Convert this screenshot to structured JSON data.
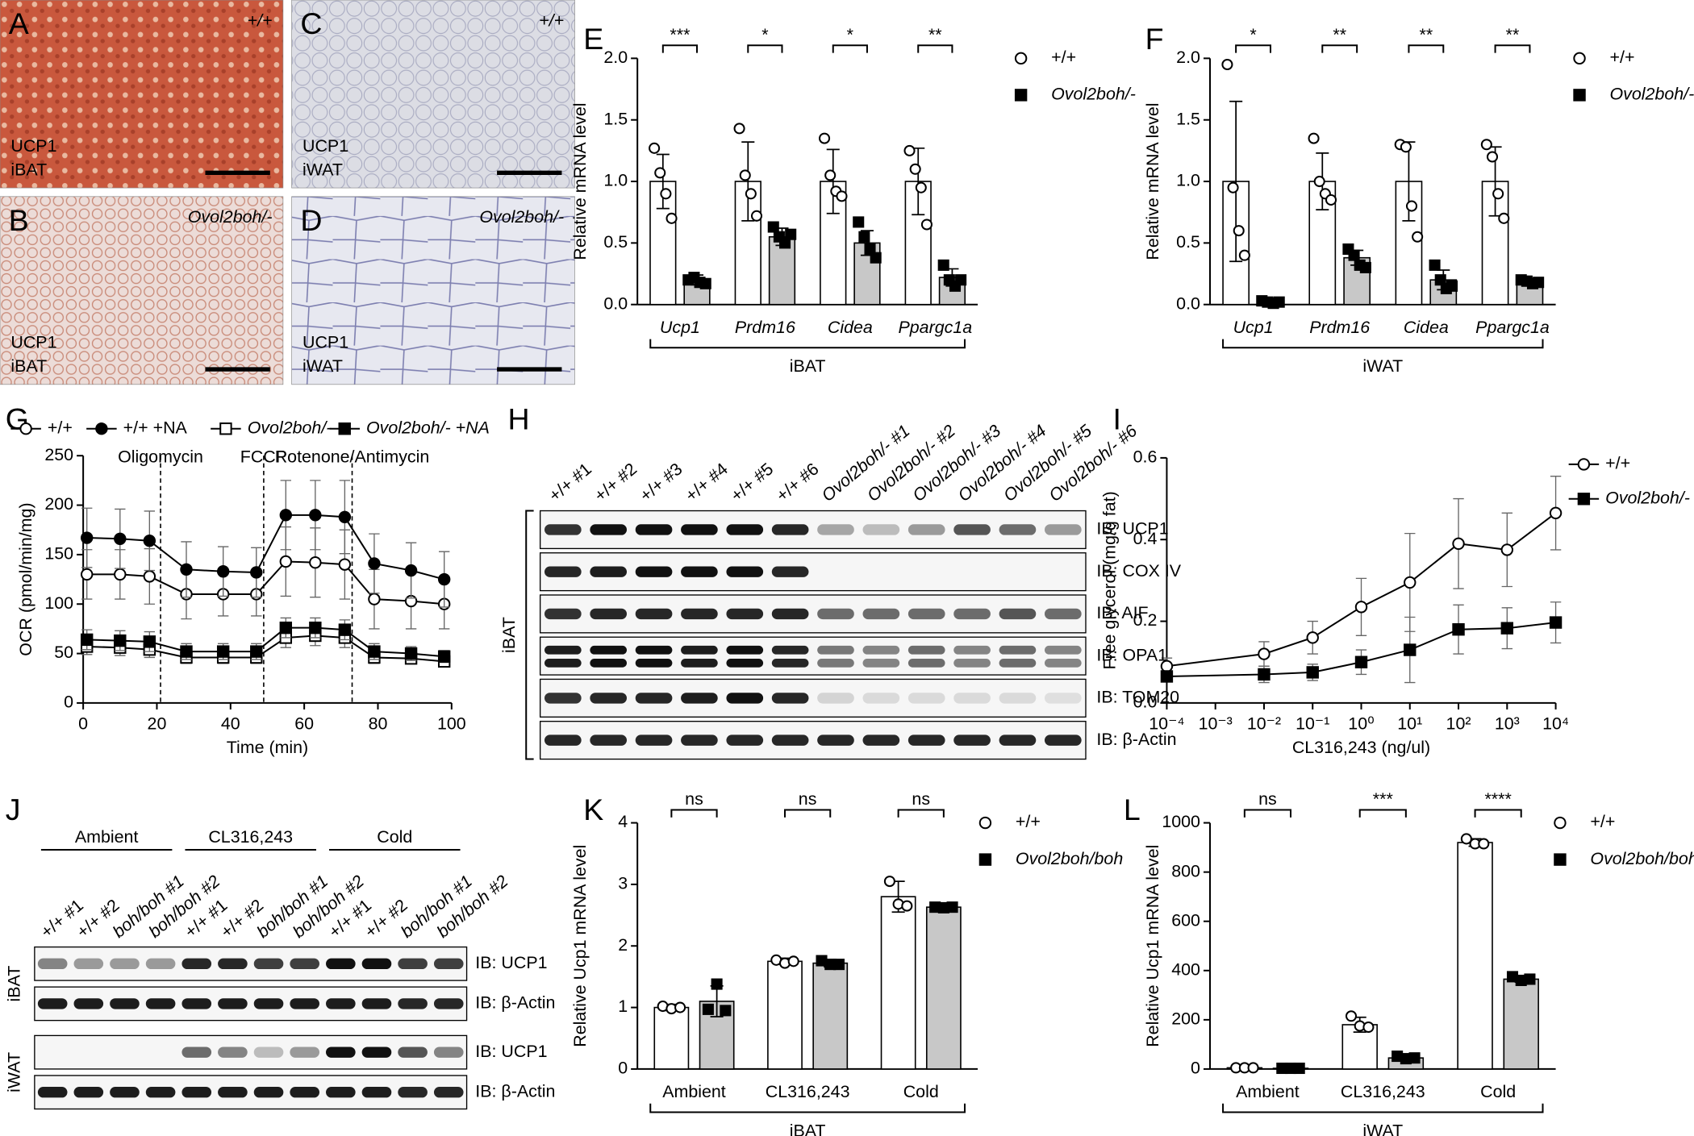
{
  "image_panels": [
    {
      "letter": "A",
      "genotype": "+/+",
      "stain": "UCP1",
      "tissue": "iBAT"
    },
    {
      "letter": "B",
      "genotype": "Ovol2boh/-",
      "stain": "UCP1",
      "tissue": "iBAT"
    },
    {
      "letter": "C",
      "genotype": "+/+",
      "stain": "UCP1",
      "tissue": "iWAT"
    },
    {
      "letter": "D",
      "genotype": "Ovol2boh/-",
      "stain": "UCP1",
      "tissue": "iWAT"
    }
  ],
  "chart_data": [
    {
      "letter": "E",
      "type": "bar",
      "ylabel": "Relative mRNA level",
      "categories": [
        "Ucp1",
        "Prdm16",
        "Cidea",
        "Ppargc1a"
      ],
      "category_style": "italic",
      "group_label": "iBAT",
      "significance": [
        "***",
        "*",
        "*",
        "**"
      ],
      "ylim": [
        0,
        2
      ],
      "yticks": [
        {
          "value": 0,
          "label": "0.0"
        },
        0.5,
        {
          "value": 1,
          "label": "1.0"
        },
        1.5,
        {
          "value": 2,
          "label": "2.0"
        }
      ],
      "series": [
        {
          "name": "+/+",
          "color": "#ffffff",
          "marker": "circle-open",
          "values": [
            1,
            1,
            1,
            1
          ],
          "errors": [
            0.22,
            0.32,
            0.26,
            0.27
          ],
          "points": [
            [
              1.27,
              1.07,
              0.9,
              0.7
            ],
            [
              1.43,
              1.05,
              0.9,
              0.72
            ],
            [
              1.35,
              1.05,
              0.92,
              0.88
            ],
            [
              1.25,
              1.1,
              0.95,
              0.65
            ]
          ]
        },
        {
          "name": "Ovol2boh/-",
          "color": "#c8c8c8",
          "marker": "square",
          "values": [
            0.2,
            0.55,
            0.5,
            0.22
          ],
          "errors": [
            0.04,
            0.07,
            0.1,
            0.07
          ],
          "points": [
            [
              0.2,
              0.22,
              0.18,
              0.17
            ],
            [
              0.63,
              0.55,
              0.5,
              0.57
            ],
            [
              0.67,
              0.55,
              0.45,
              0.38
            ],
            [
              0.32,
              0.2,
              0.15,
              0.2
            ]
          ]
        }
      ]
    },
    {
      "letter": "F",
      "type": "bar",
      "ylabel": "Relative mRNA level",
      "categories": [
        "Ucp1",
        "Prdm16",
        "Cidea",
        "Ppargc1a"
      ],
      "category_style": "italic",
      "group_label": "iWAT",
      "significance": [
        "*",
        "**",
        "**",
        "**"
      ],
      "ylim": [
        0,
        2
      ],
      "yticks": [
        {
          "value": 0,
          "label": "0.0"
        },
        0.5,
        {
          "value": 1,
          "label": "1.0"
        },
        1.5,
        {
          "value": 2,
          "label": "2.0"
        }
      ],
      "series": [
        {
          "name": "+/+",
          "color": "#ffffff",
          "marker": "circle-open",
          "values": [
            1,
            1,
            1,
            1
          ],
          "errors": [
            0.65,
            0.23,
            0.32,
            0.28
          ],
          "points": [
            [
              1.95,
              0.95,
              0.6,
              0.4
            ],
            [
              1.35,
              1.0,
              0.9,
              0.85
            ],
            [
              1.3,
              1.28,
              0.8,
              0.55
            ],
            [
              1.3,
              1.2,
              0.9,
              0.7
            ]
          ]
        },
        {
          "name": "Ovol2boh/-",
          "color": "#c8c8c8",
          "marker": "square",
          "values": [
            0.02,
            0.38,
            0.2,
            0.18
          ],
          "errors": [
            0.01,
            0.06,
            0.08,
            0.02
          ],
          "points": [
            [
              0.03,
              0.02,
              0.01,
              0.02
            ],
            [
              0.45,
              0.4,
              0.32,
              0.3
            ],
            [
              0.32,
              0.2,
              0.13,
              0.15
            ],
            [
              0.2,
              0.19,
              0.17,
              0.18
            ]
          ]
        }
      ]
    },
    {
      "letter": "G",
      "type": "line",
      "xlabel": "Time (min)",
      "ylabel": "OCR (pmol/min/mg)",
      "legend": "top",
      "x": [
        1,
        10,
        18,
        28,
        38,
        47,
        55,
        63,
        71,
        79,
        89,
        98
      ],
      "xlim": [
        0,
        100
      ],
      "xticks": [
        0,
        20,
        40,
        60,
        80,
        100
      ],
      "ylim": [
        0,
        250
      ],
      "yticks": [
        0,
        50,
        100,
        150,
        200,
        250
      ],
      "annotations": [
        {
          "x": 21,
          "label": "Oligomycin"
        },
        {
          "x": 49,
          "label": "FCCP"
        },
        {
          "x": 73,
          "label": "Rotenone/Antimycin"
        }
      ],
      "series": [
        {
          "name": "+/+",
          "color": "#000000",
          "marker": "circle-open",
          "values": [
            130,
            130,
            128,
            110,
            110,
            110,
            143,
            142,
            140,
            105,
            103,
            100
          ],
          "errors": [
            25,
            25,
            28,
            25,
            22,
            22,
            35,
            35,
            35,
            30,
            28,
            25
          ]
        },
        {
          "name": "+/+ +NA",
          "color": "#000000",
          "marker": "circle",
          "values": [
            167,
            166,
            164,
            135,
            133,
            132,
            190,
            190,
            188,
            141,
            134,
            125
          ],
          "errors": [
            30,
            30,
            30,
            28,
            25,
            25,
            35,
            35,
            37,
            30,
            28,
            28
          ]
        },
        {
          "name": "Ovol2boh/-",
          "color": "#000000",
          "marker": "square-open",
          "values": [
            57,
            56,
            54,
            46,
            46,
            46,
            66,
            68,
            66,
            46,
            45,
            42
          ],
          "errors": [
            8,
            8,
            8,
            6,
            6,
            6,
            10,
            10,
            10,
            6,
            5,
            5
          ]
        },
        {
          "name": "Ovol2boh/- +NA",
          "color": "#000000",
          "marker": "square",
          "values": [
            64,
            63,
            62,
            52,
            52,
            52,
            76,
            76,
            74,
            52,
            50,
            47
          ],
          "errors": [
            10,
            10,
            10,
            8,
            8,
            8,
            10,
            10,
            10,
            8,
            7,
            6
          ]
        }
      ]
    },
    {
      "letter": "I",
      "type": "line",
      "xscale": "log",
      "xlabel": "CL316,243 (ng/ul)",
      "ylabel": "Free glycerol (mg/g fat)",
      "legend": "right",
      "x": [
        0.0001,
        0.01,
        0.1,
        1,
        10,
        100,
        1000,
        10000
      ],
      "xlim": [
        0.0001,
        10000
      ],
      "xticks": [
        {
          "value": 0.0001,
          "label": "10⁻⁴"
        },
        {
          "value": 0.001,
          "label": "10⁻³"
        },
        {
          "value": 0.01,
          "label": "10⁻²"
        },
        {
          "value": 0.1,
          "label": "10⁻¹"
        },
        {
          "value": 1,
          "label": "10⁰"
        },
        {
          "value": 10,
          "label": "10¹"
        },
        {
          "value": 100,
          "label": "10²"
        },
        {
          "value": 1000,
          "label": "10³"
        },
        {
          "value": 10000,
          "label": "10⁴"
        }
      ],
      "ylim": [
        0,
        0.6
      ],
      "yticks": [
        {
          "value": 0,
          "label": "0.0"
        },
        0.2,
        0.4,
        0.6
      ],
      "series": [
        {
          "name": "+/+",
          "color": "#000000",
          "marker": "circle-open",
          "values": [
            0.09,
            0.12,
            0.16,
            0.235,
            0.295,
            0.39,
            0.375,
            0.465
          ],
          "errors": [
            0.02,
            0.03,
            0.04,
            0.07,
            0.12,
            0.11,
            0.09,
            0.09
          ]
        },
        {
          "name": "Ovol2boh/-",
          "color": "#000000",
          "marker": "square",
          "values": [
            0.065,
            0.07,
            0.075,
            0.1,
            0.13,
            0.18,
            0.183,
            0.197
          ],
          "errors": [
            0.01,
            0.02,
            0.02,
            0.03,
            0.08,
            0.06,
            0.05,
            0.05
          ]
        }
      ]
    },
    {
      "letter": "K",
      "type": "bar",
      "ylabel": "Relative Ucp1 mRNA level",
      "categories": [
        "Ambient",
        "CL316,243",
        "Cold"
      ],
      "category_style": "normal",
      "group_label": "iBAT",
      "significance": [
        "ns",
        "ns",
        "ns"
      ],
      "ylim": [
        0,
        4
      ],
      "yticks": [
        0,
        1,
        2,
        3,
        4
      ],
      "series": [
        {
          "name": "+/+",
          "color": "#ffffff",
          "marker": "circle-open",
          "values": [
            1.0,
            1.75,
            2.8
          ],
          "errors": [
            0.05,
            0.05,
            0.25
          ],
          "points": [
            [
              1.02,
              0.98,
              1.0
            ],
            [
              1.77,
              1.72,
              1.75
            ],
            [
              3.05,
              2.68,
              2.65
            ]
          ]
        },
        {
          "name": "Ovol2boh/boh",
          "color": "#c8c8c8",
          "marker": "square",
          "values": [
            1.1,
            1.72,
            2.63
          ],
          "errors": [
            0.25,
            0.06,
            0.03
          ],
          "points": [
            [
              0.97,
              1.38,
              0.95
            ],
            [
              1.76,
              1.7,
              1.7
            ],
            [
              2.63,
              2.62,
              2.63
            ]
          ]
        }
      ]
    },
    {
      "letter": "L",
      "type": "bar",
      "ylabel": "Relative Ucp1 mRNA level",
      "categories": [
        "Ambient",
        "CL316,243",
        "Cold"
      ],
      "category_style": "normal",
      "group_label": "iWAT",
      "significance": [
        "ns",
        "***",
        "****"
      ],
      "ylim": [
        0,
        1000
      ],
      "yticks": [
        0,
        200,
        400,
        600,
        800,
        1000
      ],
      "series": [
        {
          "name": "+/+",
          "color": "#ffffff",
          "marker": "circle-open",
          "values": [
            5,
            180,
            920
          ],
          "errors": [
            2,
            30,
            15
          ],
          "points": [
            [
              5,
              5,
              5
            ],
            [
              215,
              175,
              170
            ],
            [
              935,
              915,
              915
            ]
          ]
        },
        {
          "name": "Ovol2boh/boh",
          "color": "#c8c8c8",
          "marker": "square",
          "values": [
            3,
            45,
            365
          ],
          "errors": [
            1,
            10,
            12
          ],
          "points": [
            [
              3,
              3,
              3
            ],
            [
              52,
              42,
              45
            ],
            [
              375,
              360,
              365
            ]
          ]
        }
      ]
    }
  ],
  "blot_h": {
    "letter": "H",
    "side_label": "iBAT",
    "lanes": [
      "+/+ #1",
      "+/+ #2",
      "+/+ #3",
      "+/+ #4",
      "+/+ #5",
      "+/+ #6",
      "Ovol2boh/- #1",
      "Ovol2boh/- #2",
      "Ovol2boh/- #3",
      "Ovol2boh/- #4",
      "Ovol2boh/- #5",
      "Ovol2boh/- #6"
    ],
    "rows": [
      "IB: UCP1",
      "IB: COX IV",
      "IB: AIF",
      "IB: OPA1",
      "IB: TOM20",
      "IB: β-Actin"
    ]
  },
  "blot_j": {
    "letter": "J",
    "groups": [
      "Ambient",
      "CL316,243",
      "Cold"
    ],
    "lanes": [
      "+/+ #1",
      "+/+ #2",
      "boh/boh #1",
      "boh/boh #2",
      "+/+ #1",
      "+/+ #2",
      "boh/boh #1",
      "boh/boh #2",
      "+/+ #1",
      "+/+ #2",
      "boh/boh #1",
      "boh/boh #2"
    ],
    "sections": [
      {
        "label": "iBAT",
        "rows": [
          "IB: UCP1",
          "IB: β-Actin"
        ]
      },
      {
        "label": "iWAT",
        "rows": [
          "IB: UCP1",
          "IB: β-Actin"
        ]
      }
    ]
  }
}
